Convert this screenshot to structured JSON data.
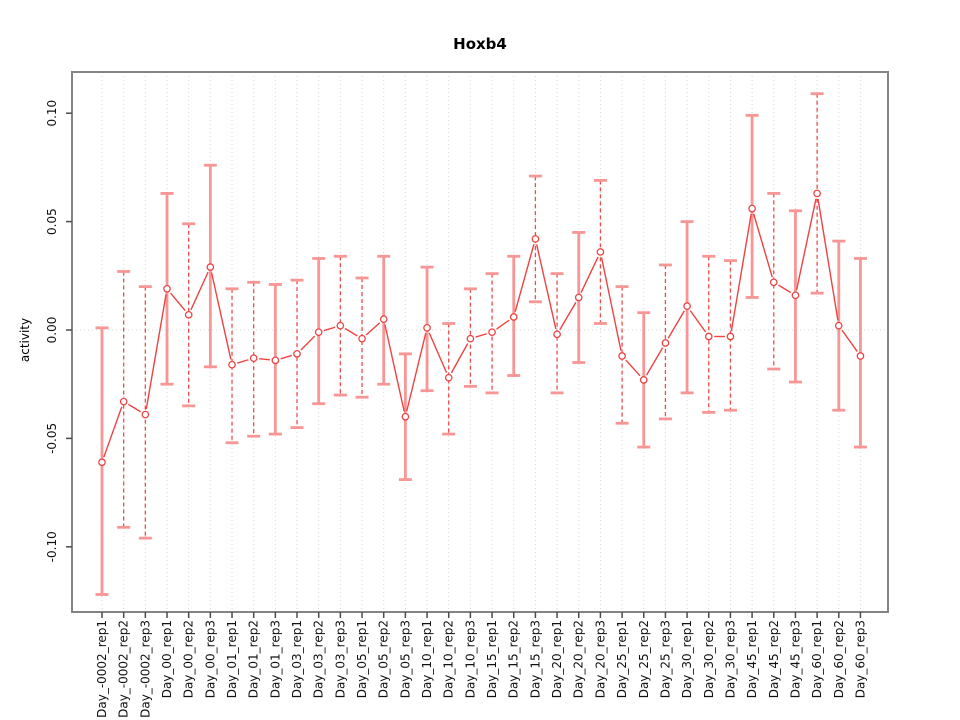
{
  "chart_data": {
    "type": "line",
    "title": "Hoxb4",
    "xlabel": "",
    "ylabel": "activity",
    "ylim": [
      -0.13,
      0.12
    ],
    "grid": "vertical dotted gridline per category, dotted horizontal line at 0",
    "legend_position": "none",
    "marker": "open-circle",
    "yticks": [
      0.1,
      0.05,
      0.0,
      -0.05,
      -0.1
    ],
    "ytick_labels": [
      "0.10",
      "0.05",
      "0.00",
      "-0.05",
      "-0.10"
    ],
    "categories": [
      "Day_-0002_rep1",
      "Day_-0002_rep2",
      "Day_-0002_rep3",
      "Day_00_rep1",
      "Day_00_rep2",
      "Day_00_rep3",
      "Day_01_rep1",
      "Day_01_rep2",
      "Day_01_rep3",
      "Day_03_rep1",
      "Day_03_rep2",
      "Day_03_rep3",
      "Day_05_rep1",
      "Day_05_rep2",
      "Day_05_rep3",
      "Day_10_rep1",
      "Day_10_rep2",
      "Day_10_rep3",
      "Day_15_rep1",
      "Day_15_rep2",
      "Day_15_rep3",
      "Day_20_rep1",
      "Day_20_rep2",
      "Day_20_rep3",
      "Day_25_rep1",
      "Day_25_rep2",
      "Day_25_rep3",
      "Day_30_rep1",
      "Day_30_rep2",
      "Day_30_rep3",
      "Day_45_rep1",
      "Day_45_rep2",
      "Day_45_rep3",
      "Day_60_rep1",
      "Day_60_rep2",
      "Day_60_rep3"
    ],
    "series": [
      {
        "name": "activity",
        "values": [
          -0.061,
          -0.033,
          -0.039,
          0.019,
          0.007,
          0.029,
          -0.016,
          -0.013,
          -0.014,
          -0.011,
          -0.001,
          0.002,
          -0.004,
          0.005,
          -0.04,
          0.001,
          -0.022,
          -0.004,
          -0.001,
          0.006,
          0.042,
          -0.002,
          0.015,
          0.036,
          -0.012,
          -0.023,
          -0.006,
          0.011,
          -0.003,
          -0.003,
          0.056,
          0.022,
          0.016,
          0.063,
          0.002,
          -0.012
        ],
        "error_upper": [
          0.001,
          0.027,
          0.02,
          0.063,
          0.049,
          0.076,
          0.019,
          0.022,
          0.021,
          0.023,
          0.033,
          0.034,
          0.024,
          0.034,
          -0.011,
          0.029,
          0.003,
          0.019,
          0.026,
          0.034,
          0.071,
          0.026,
          0.045,
          0.069,
          0.02,
          0.008,
          0.03,
          0.05,
          0.034,
          0.032,
          0.099,
          0.063,
          0.055,
          0.109,
          0.041,
          0.033
        ],
        "error_lower": [
          -0.122,
          -0.091,
          -0.096,
          -0.025,
          -0.035,
          -0.017,
          -0.052,
          -0.049,
          -0.048,
          -0.045,
          -0.034,
          -0.03,
          -0.031,
          -0.025,
          -0.069,
          -0.028,
          -0.048,
          -0.026,
          -0.029,
          -0.021,
          0.013,
          -0.029,
          -0.015,
          0.003,
          -0.043,
          -0.054,
          -0.041,
          -0.029,
          -0.038,
          -0.037,
          0.015,
          -0.018,
          -0.024,
          0.017,
          -0.037,
          -0.054
        ],
        "errorbar_styles": [
          "solid",
          "dashed",
          "dashed",
          "solid",
          "dashed",
          "solid",
          "dashed",
          "dashed",
          "solid",
          "dashed",
          "solid",
          "dashed",
          "dashed",
          "solid",
          "solid",
          "solid",
          "dashed",
          "dashed",
          "dashed",
          "solid",
          "dashed",
          "dashed",
          "solid",
          "dashed",
          "dashed",
          "solid",
          "dashed",
          "solid",
          "dashed",
          "dashed",
          "solid",
          "dashed",
          "solid",
          "dashed",
          "solid",
          "solid"
        ]
      }
    ],
    "colors": {
      "series_line": "#ee4343",
      "marker_stroke": "#ee4343",
      "marker_fill": "#ffffff",
      "errorbar_solid": "#f89595",
      "errorbar_dashed": "#ee4c4c",
      "grid": "#d6d6d6",
      "zero_line": "#d6d6d6",
      "frame": "#848484",
      "tick": "#4c4c4c",
      "text": "#111111",
      "background": "#ffffff"
    }
  }
}
